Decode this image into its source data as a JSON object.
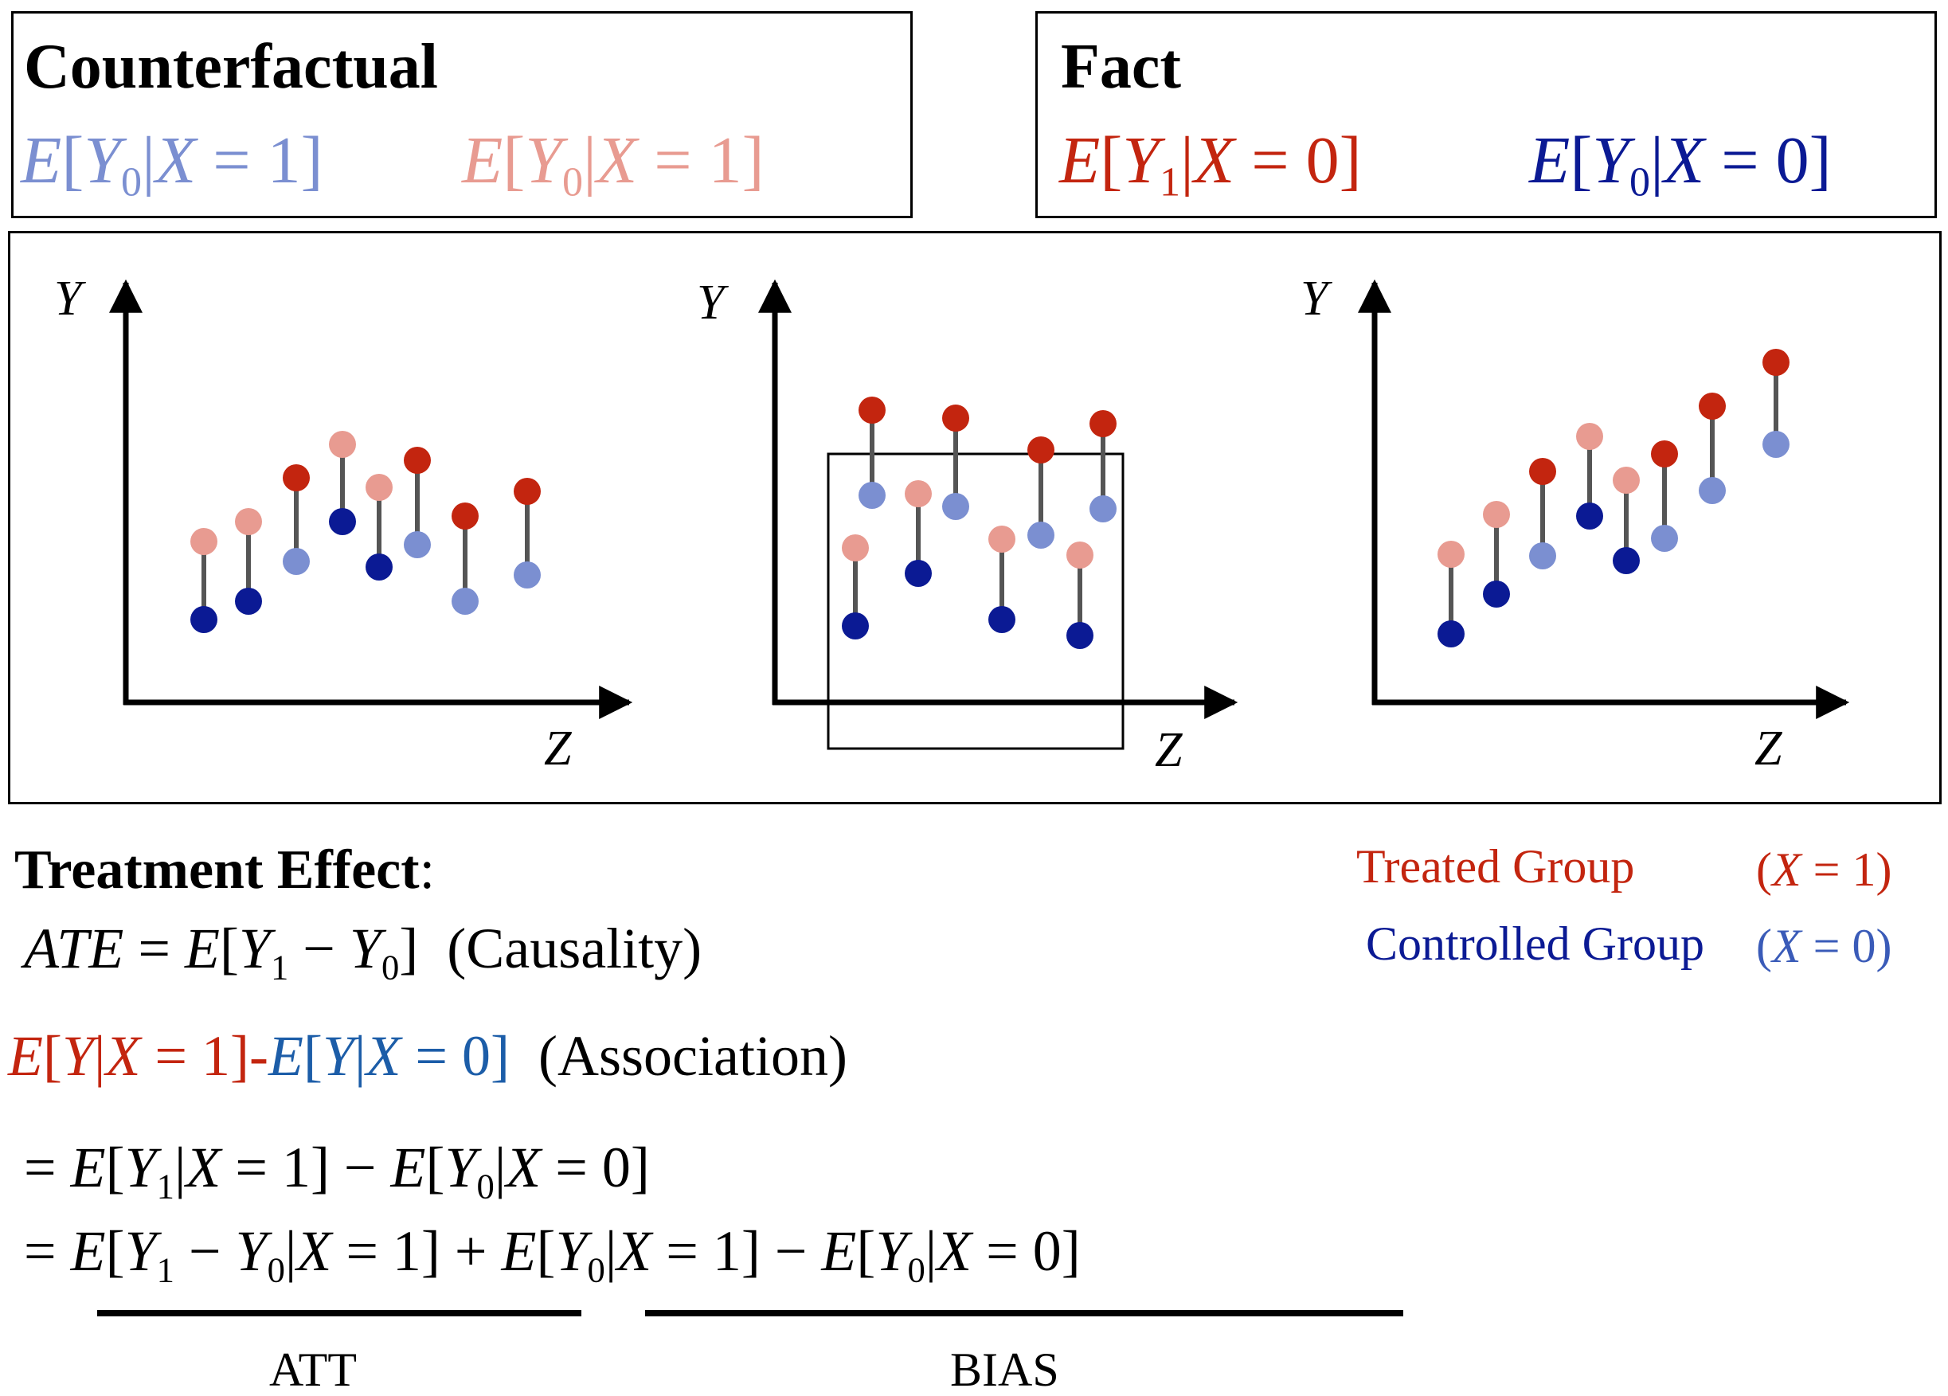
{
  "counterfactual": {
    "title": "Counterfactual",
    "eq_blue": "E[Y0|X = 1]",
    "eq_pink": "E[Y0|X = 1]"
  },
  "fact": {
    "title": "Fact",
    "eq_red": "E[Y1|X = 0]",
    "eq_navy": "E[Y0|X = 0]"
  },
  "axes": {
    "y_label": "Y",
    "x_label": "Z"
  },
  "colors": {
    "treated_fact": "#c3250f",
    "treated_counterfactual": "#e89b91",
    "control_fact": "#0b1a94",
    "control_counterfactual": "#7b8fd1",
    "stem": "#555555"
  },
  "panels": [
    {
      "name": "panel-left",
      "pairs": [
        {
          "top": "treated_counterfactual",
          "bottom": "control_fact"
        },
        {
          "top": "treated_counterfactual",
          "bottom": "control_fact"
        },
        {
          "top": "treated_fact",
          "bottom": "control_counterfactual"
        },
        {
          "top": "treated_counterfactual",
          "bottom": "control_fact"
        },
        {
          "top": "treated_counterfactual",
          "bottom": "control_fact"
        },
        {
          "top": "treated_fact",
          "bottom": "control_counterfactual"
        },
        {
          "top": "treated_fact",
          "bottom": "control_counterfactual"
        },
        {
          "top": "treated_fact",
          "bottom": "control_counterfactual"
        }
      ]
    },
    {
      "name": "panel-middle",
      "pairs": [
        {
          "top": "treated_counterfactual",
          "bottom": "control_fact"
        },
        {
          "top": "treated_fact",
          "bottom": "control_counterfactual"
        },
        {
          "top": "treated_counterfactual",
          "bottom": "control_fact"
        },
        {
          "top": "treated_fact",
          "bottom": "control_counterfactual"
        },
        {
          "top": "treated_counterfactual",
          "bottom": "control_fact"
        },
        {
          "top": "treated_fact",
          "bottom": "control_counterfactual"
        },
        {
          "top": "treated_counterfactual",
          "bottom": "control_fact"
        },
        {
          "top": "treated_fact",
          "bottom": "control_counterfactual"
        }
      ]
    },
    {
      "name": "panel-right",
      "pairs": [
        {
          "top": "treated_counterfactual",
          "bottom": "control_fact"
        },
        {
          "top": "treated_counterfactual",
          "bottom": "control_fact"
        },
        {
          "top": "treated_fact",
          "bottom": "control_counterfactual"
        },
        {
          "top": "treated_counterfactual",
          "bottom": "control_fact"
        },
        {
          "top": "treated_counterfactual",
          "bottom": "control_fact"
        },
        {
          "top": "treated_fact",
          "bottom": "control_counterfactual"
        },
        {
          "top": "treated_fact",
          "bottom": "control_counterfactual"
        },
        {
          "top": "treated_fact",
          "bottom": "control_counterfactual"
        }
      ]
    }
  ],
  "treatment": {
    "title": "Treatment Effect",
    "colon": ":",
    "ate": "ATE = E[Y1 − Y0]",
    "causality": "(Causality)"
  },
  "legend": {
    "treated_label": "Treated Group",
    "treated_cond": "(X = 1)",
    "control_label": "Controlled Group",
    "control_cond": "(X = 0)"
  },
  "association": {
    "red_part": "E[Y|X = 1]",
    "dash": "-",
    "blue_part": "E[Y|X = 0]",
    "label": "(Association)"
  },
  "equations": {
    "line1": "= E[Y1|X = 1] − E[Y0|X = 0]",
    "line2": "= E[Y1 − Y0|X = 1] + E[Y0|X = 1] − E[Y0|X = 0]"
  },
  "underbraces": {
    "att": "ATT",
    "bias": "BIAS"
  }
}
